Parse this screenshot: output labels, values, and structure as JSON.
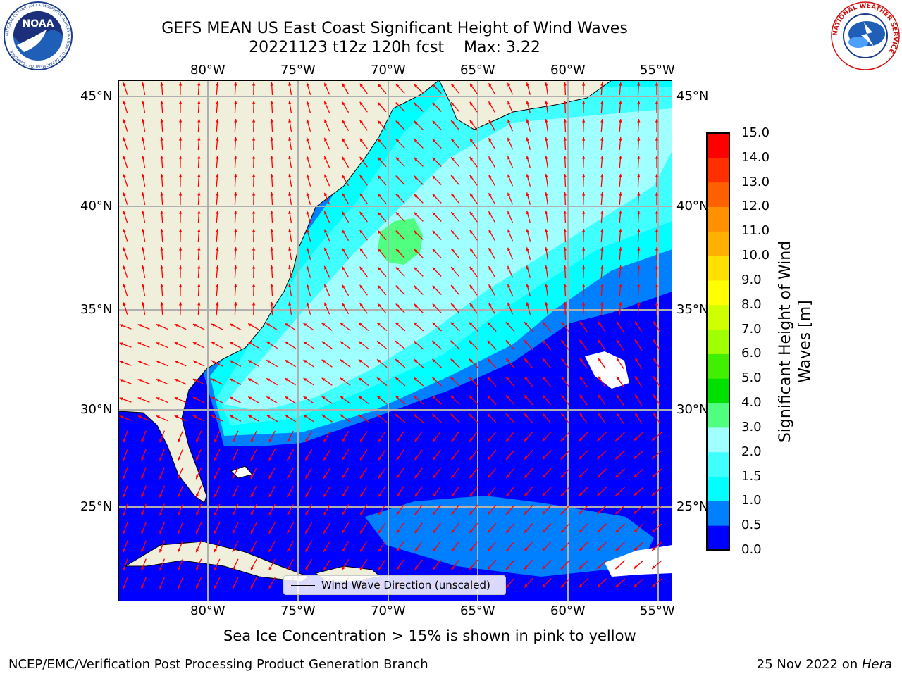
{
  "title": {
    "line1": "GEFS MEAN US East Coast Significant Height of Wind Waves",
    "line2": "20221123 t12z 120h fcst    Max: 3.22"
  },
  "axes": {
    "lon_labels": [
      "80°W",
      "75°W",
      "70°W",
      "65°W",
      "60°W",
      "55°W"
    ],
    "lat_labels_left": [
      "45°N",
      "40°N",
      "35°N",
      "30°N",
      "25°N"
    ],
    "lat_labels_right": [
      "45°N",
      "40°N",
      "35°N",
      "30°N",
      "25°N"
    ]
  },
  "colorbar": {
    "label": "Significant Height of Wind Waves [m]",
    "ticks": [
      "0.0",
      "0.5",
      "1.0",
      "1.5",
      "2.0",
      "3.0",
      "4.0",
      "5.0",
      "6.0",
      "7.0",
      "8.0",
      "9.0",
      "10.0",
      "11.0",
      "12.0",
      "13.0",
      "14.0",
      "15.0"
    ],
    "colors": [
      "#0000ff",
      "#0080ff",
      "#00ffff",
      "#40ffff",
      "#a0ffff",
      "#50ff80",
      "#00e000",
      "#40f000",
      "#a0ff00",
      "#d0ff00",
      "#ffff00",
      "#ffe000",
      "#ffb000",
      "#ff9000",
      "#ff6000",
      "#ff3000",
      "#ff0000"
    ]
  },
  "legend": {
    "label": "Wind Wave Direction (unscaled)"
  },
  "notes": {
    "sea_ice": "Sea Ice Concentration > 15% is shown in pink to yellow",
    "org": "NCEP/EMC/Verification Post Processing Product Generation Branch",
    "date": "25 Nov 2022 on ",
    "machine": "Hera"
  },
  "logos": {
    "noaa_text": "NOAA",
    "noaa_ring": "NATIONAL OCEANIC AND ATMOSPHERIC ADMINISTRATION · U.S. DEPARTMENT OF COMMERCE",
    "nws_ring": "NATIONAL WEATHER SERVICE"
  },
  "colors": {
    "land": "#efefdc",
    "arrow": "#ff0000",
    "grid": "#b0b0b0"
  }
}
